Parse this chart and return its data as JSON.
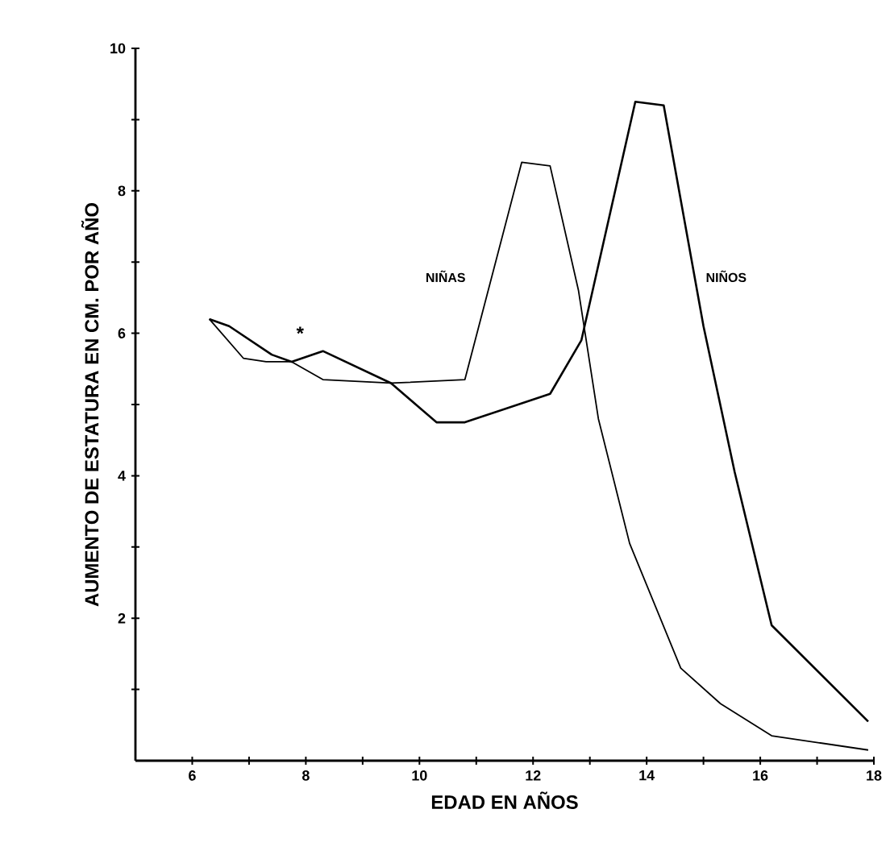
{
  "chart_data": {
    "type": "line",
    "xlabel": "EDAD EN AÑOS",
    "ylabel": "AUMENTO DE ESTATURA EN CM. POR AÑO",
    "xlim": [
      5,
      18
    ],
    "ylim": [
      0,
      10
    ],
    "xticks": [
      6,
      {
        "value": 7,
        "label": null
      },
      8,
      {
        "value": 9,
        "label": null
      },
      10,
      {
        "value": 11,
        "label": null
      },
      12,
      {
        "value": 13,
        "label": null
      },
      14,
      {
        "value": 15,
        "label": null
      },
      16,
      {
        "value": 17,
        "label": null
      },
      18
    ],
    "yticks": [
      {
        "value": 1,
        "label": null
      },
      2,
      {
        "value": 3,
        "label": null
      },
      4,
      {
        "value": 5,
        "label": null
      },
      6,
      {
        "value": 7,
        "label": null
      },
      8,
      {
        "value": 9,
        "label": null
      },
      10
    ],
    "annotations": [
      "*"
    ],
    "series": [
      {
        "name": "NIÑAS",
        "color": "#000000",
        "x": [
          6.3,
          6.9,
          7.3,
          7.75,
          8.3,
          9.5,
          10.8,
          11.8,
          12.3,
          12.8,
          13.15,
          13.7,
          14.6,
          15.3,
          16.2,
          17.9
        ],
        "values": [
          6.2,
          5.65,
          5.6,
          5.6,
          5.35,
          5.3,
          5.35,
          8.4,
          8.35,
          6.6,
          4.8,
          3.05,
          1.3,
          0.8,
          0.35,
          0.15
        ]
      },
      {
        "name": "NIÑOS",
        "color": "#000000",
        "x": [
          6.3,
          6.65,
          7.4,
          7.75,
          8.3,
          9.5,
          10.3,
          10.8,
          12.3,
          12.85,
          13.8,
          14.3,
          15.0,
          15.55,
          16.2,
          17.9
        ],
        "values": [
          6.2,
          6.1,
          5.7,
          5.6,
          5.75,
          5.3,
          4.75,
          4.75,
          5.15,
          5.9,
          9.25,
          9.2,
          6.1,
          4.05,
          1.9,
          0.55
        ]
      }
    ]
  }
}
